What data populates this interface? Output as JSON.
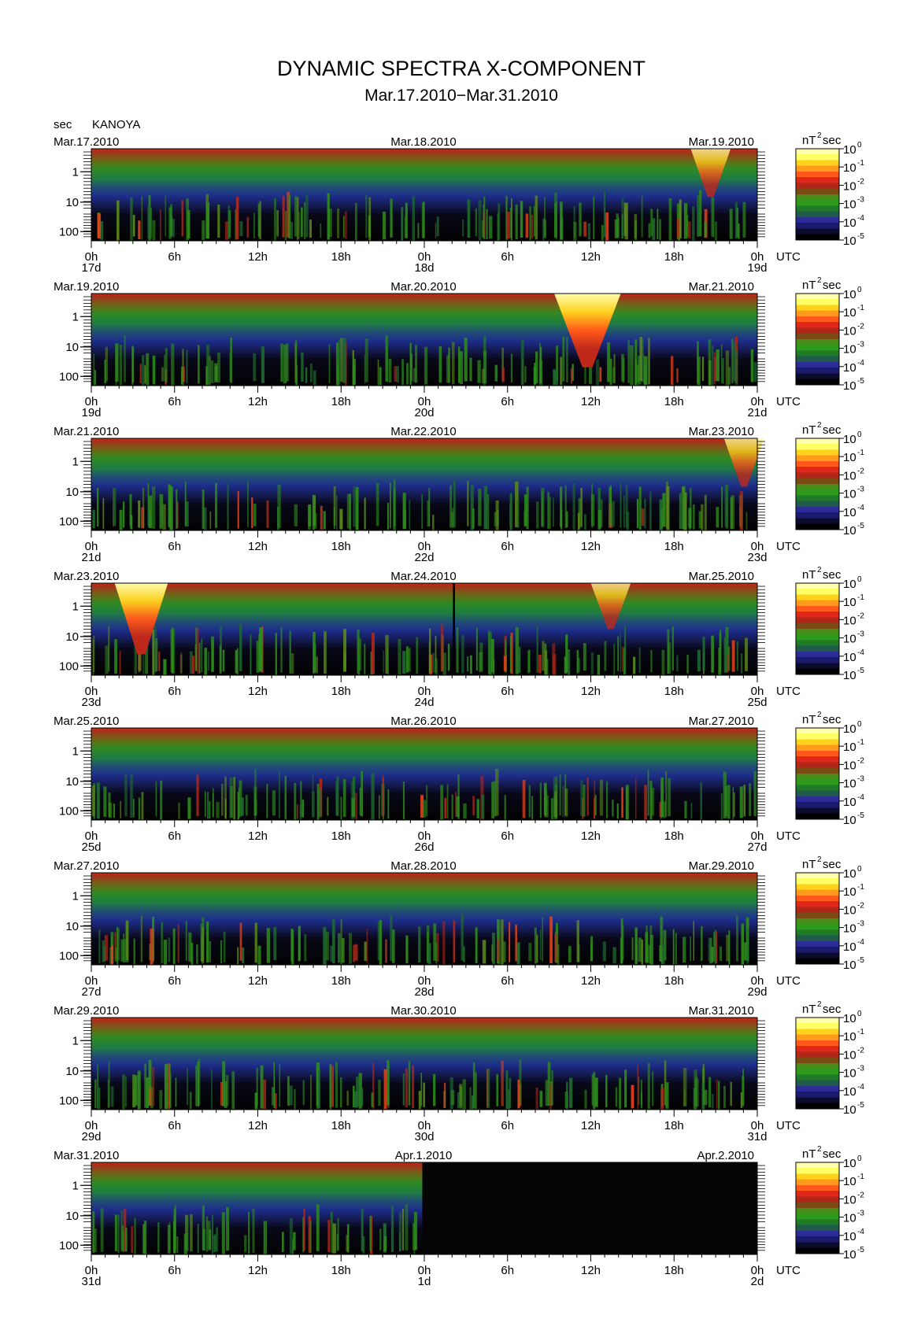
{
  "title": "DYNAMIC SPECTRA X-COMPONENT",
  "subtitle": "Mar.17.2010−Mar.31.2010",
  "station": "KANOYA",
  "y_unit": "sec",
  "colorbar_unit": "nT",
  "colorbar_unit_exp": "2",
  "colorbar_unit_suffix": "sec",
  "x_unit": "UTC",
  "chart_data": {
    "type": "heatmap",
    "title": "DYNAMIC SPECTRA X-COMPONENT",
    "subtitle": "Mar.17.2010−Mar.31.2010",
    "station": "KANOYA",
    "ylabel": "sec",
    "y_scale": "log",
    "y_ticks": [
      "1",
      "10",
      "100"
    ],
    "x_ticks": [
      "0h",
      "6h",
      "12h",
      "18h",
      "0h",
      "6h",
      "12h",
      "18h",
      "0h"
    ],
    "x_unit": "UTC",
    "colorbar": {
      "unit": "nT²sec",
      "scale": "log",
      "ticks": [
        "10",
        "10",
        "10",
        "10",
        "10",
        "10"
      ],
      "tick_exponents": [
        "0",
        "-1",
        "-2",
        "-3",
        "-4",
        "-5"
      ],
      "range": [
        1e-05,
        1
      ],
      "colors": [
        "#000000",
        "#0a0a2a",
        "#1a1a6e",
        "#2c2c96",
        "#205a4a",
        "#1f7a28",
        "#2e9a1c",
        "#4a8c1a",
        "#7a4a14",
        "#b0281a",
        "#e0281a",
        "#ff5a1a",
        "#ff9a1a",
        "#ffd21e",
        "#ffff66",
        "#ffffb0"
      ]
    },
    "panels": [
      {
        "left_date": "Mar.17.2010",
        "mid_date": "Mar.18.2010",
        "right_date": "Mar.19.2010",
        "days": [
          "17d",
          "18d",
          "19d"
        ],
        "data_extent": 1.0,
        "events": [
          {
            "pos": 0.93,
            "width": 0.03,
            "level": 0.5
          }
        ]
      },
      {
        "left_date": "Mar.19.2010",
        "mid_date": "Mar.20.2010",
        "right_date": "Mar.21.2010",
        "days": [
          "19d",
          "20d",
          "21d"
        ],
        "data_extent": 1.0,
        "events": [
          {
            "pos": 0.745,
            "width": 0.05,
            "level": 1.0
          }
        ]
      },
      {
        "left_date": "Mar.21.2010",
        "mid_date": "Mar.22.2010",
        "right_date": "Mar.23.2010",
        "days": [
          "21d",
          "22d",
          "23d"
        ],
        "data_extent": 1.0,
        "events": [
          {
            "pos": 0.98,
            "width": 0.03,
            "level": 0.5
          }
        ]
      },
      {
        "left_date": "Mar.23.2010",
        "mid_date": "Mar.24.2010",
        "right_date": "Mar.25.2010",
        "days": [
          "23d",
          "24d",
          "25d"
        ],
        "data_extent": 1.0,
        "events": [
          {
            "pos": 0.075,
            "width": 0.04,
            "level": 0.95
          },
          {
            "pos": 0.78,
            "width": 0.03,
            "level": 0.45
          }
        ],
        "gaps": [
          {
            "pos": 0.543,
            "width": 0.003
          }
        ]
      },
      {
        "left_date": "Mar.25.2010",
        "mid_date": "Mar.26.2010",
        "right_date": "Mar.27.2010",
        "days": [
          "25d",
          "26d",
          "27d"
        ],
        "data_extent": 1.0,
        "events": []
      },
      {
        "left_date": "Mar.27.2010",
        "mid_date": "Mar.28.2010",
        "right_date": "Mar.29.2010",
        "days": [
          "27d",
          "28d",
          "29d"
        ],
        "data_extent": 1.0,
        "events": []
      },
      {
        "left_date": "Mar.29.2010",
        "mid_date": "Mar.30.2010",
        "right_date": "Mar.31.2010",
        "days": [
          "29d",
          "30d",
          "31d"
        ],
        "data_extent": 1.0,
        "events": []
      },
      {
        "left_date": "Mar.31.2010",
        "mid_date": "Apr.1.2010",
        "right_date": "Apr.2.2010",
        "days": [
          "31d",
          "1d",
          "2d"
        ],
        "data_extent": 0.497,
        "events": []
      }
    ]
  }
}
